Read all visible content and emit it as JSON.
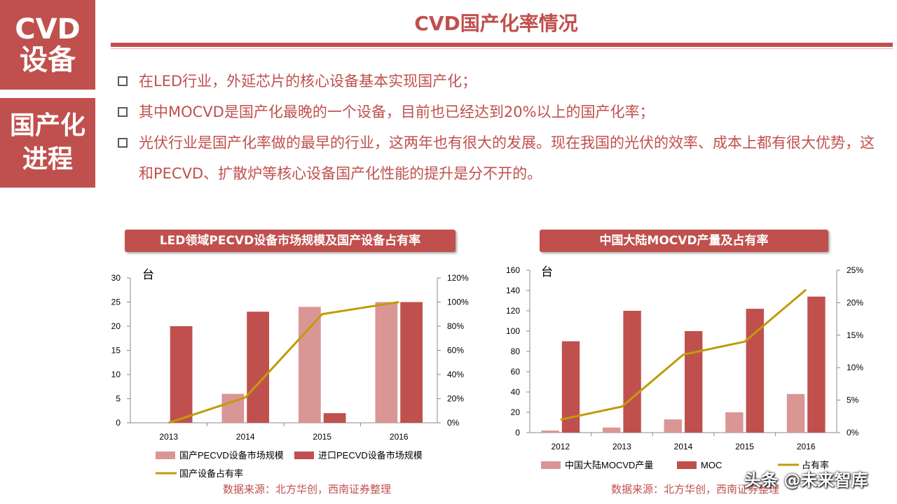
{
  "sidebar": {
    "line1": "CVD",
    "line2": "设备",
    "line3": "国产化",
    "line4": "进程"
  },
  "title": "CVD国产化率情况",
  "bullets": [
    "在LED行业，外延芯片的核心设备基本实现国产化；",
    "其中MOCVD是国产化最晚的一个设备，目前也已经达到20%以上的国产化率；",
    "光伏行业是国产化率做的最早的行业，这两年也有很大的发展。现在我国的光伏的效率、成本上都有很大优势，这和PECVD、扩散炉等核心设备国产化性能的提升是分不开的。"
  ],
  "colors": {
    "accent": "#c0504d",
    "light_bar": "#d99694",
    "line": "#c09b0b"
  },
  "chart_data": [
    {
      "type": "bar",
      "title": "LED领域PECVD设备市场规模及国产设备占有率",
      "unit_label": "台",
      "categories": [
        "2013",
        "2014",
        "2015",
        "2016"
      ],
      "series": [
        {
          "name": "国产PECVD设备市场规模",
          "type": "bar",
          "axis": "left",
          "values": [
            0,
            6,
            24,
            25
          ]
        },
        {
          "name": "进口PECVD设备市场规模",
          "type": "bar",
          "axis": "left",
          "values": [
            20,
            23,
            2,
            25
          ]
        },
        {
          "name": "国产设备占有率",
          "type": "line",
          "axis": "right",
          "values": [
            0,
            21,
            90,
            100
          ]
        }
      ],
      "left_axis": {
        "min": 0,
        "max": 30,
        "ticks": [
          "0",
          "5",
          "10",
          "15",
          "20",
          "25",
          "30"
        ]
      },
      "right_axis": {
        "min": 0,
        "max": 120,
        "ticks": [
          "0%",
          "20%",
          "40%",
          "60%",
          "80%",
          "100%",
          "120%"
        ]
      },
      "legend": "bottom",
      "source": "数据来源：北方华创，西南证券整理"
    },
    {
      "type": "bar",
      "title": "中国大陆MOCVD产量及占有率",
      "unit_label": "台",
      "categories": [
        "2012",
        "2013",
        "2014",
        "2015",
        "2016"
      ],
      "series": [
        {
          "name": "中国大陆MOCVD产量",
          "type": "bar",
          "axis": "left",
          "values": [
            2,
            5,
            13,
            20,
            38
          ]
        },
        {
          "name": "MOC",
          "type": "bar",
          "axis": "left",
          "values": [
            90,
            120,
            100,
            122,
            134
          ]
        },
        {
          "name": "占有率",
          "type": "line",
          "axis": "right",
          "values": [
            2,
            4,
            12,
            14,
            22
          ]
        }
      ],
      "left_axis": {
        "min": 0,
        "max": 160,
        "ticks": [
          "0",
          "20",
          "40",
          "60",
          "80",
          "100",
          "120",
          "140",
          "160"
        ]
      },
      "right_axis": {
        "min": 0,
        "max": 25,
        "ticks": [
          "0%",
          "5%",
          "10%",
          "15%",
          "20%",
          "25%"
        ]
      },
      "legend": "bottom",
      "source": "数据来源：北方华创，西南证券整理"
    }
  ],
  "watermark": "头条 @未来智库"
}
